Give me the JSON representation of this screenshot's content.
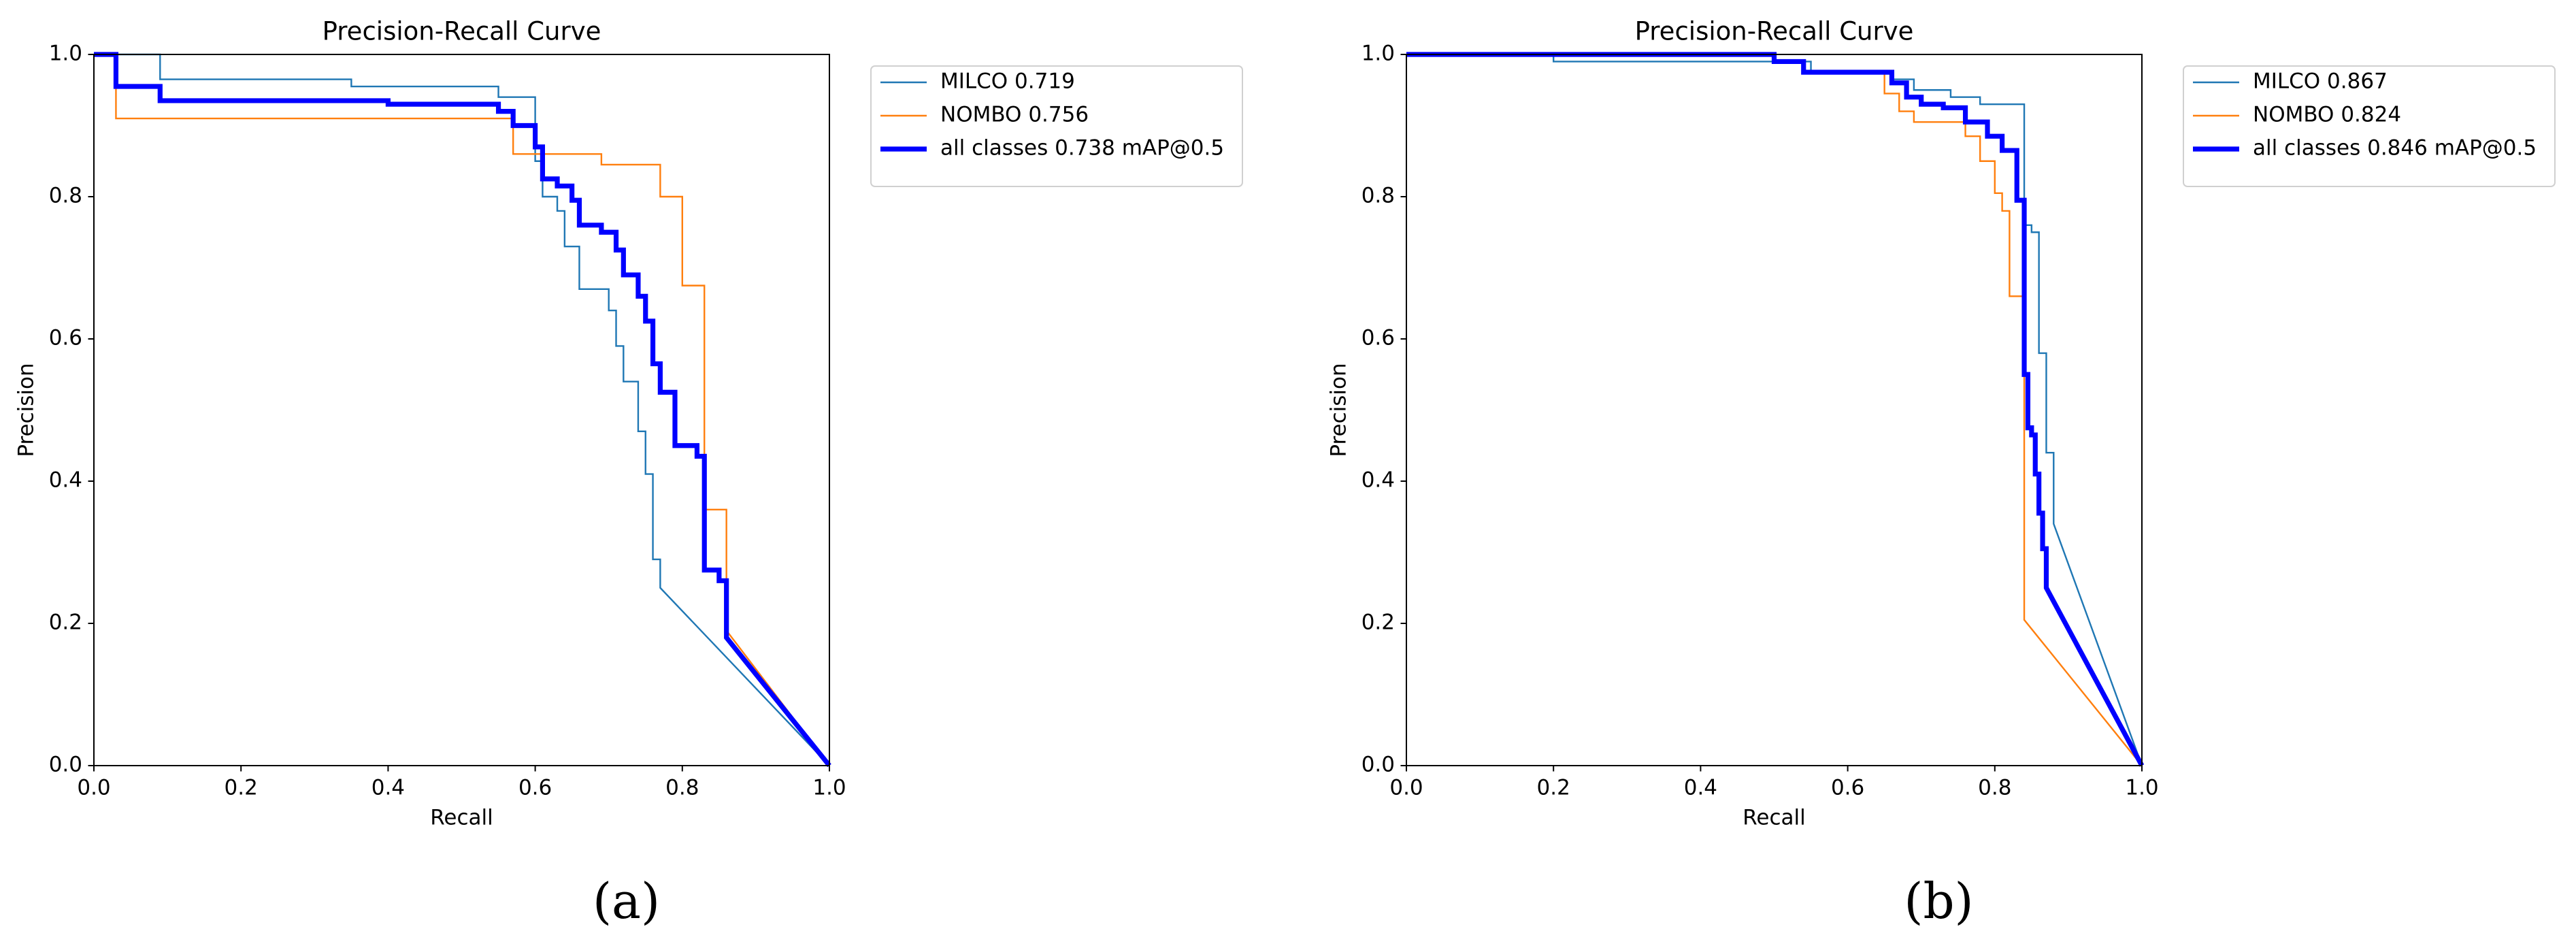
{
  "chart_data": [
    {
      "type": "line",
      "title": "Precision-Recall Curve",
      "x_label": "Recall",
      "y_label": "Precision",
      "panel_label": "(a)",
      "xlim": [
        0,
        1
      ],
      "ylim": [
        0,
        1
      ],
      "xticks": [
        {
          "value": 0,
          "label": "0.0"
        },
        0.2,
        0.4,
        0.6,
        0.8,
        {
          "value": 1,
          "label": "1.0"
        }
      ],
      "yticks": [
        {
          "value": 0,
          "label": "0.0"
        },
        0.2,
        0.4,
        0.6,
        0.8,
        {
          "value": 1,
          "label": "1.0"
        }
      ],
      "series": [
        {
          "name": "MILCO 0.719",
          "color": "#1f77b4",
          "width": 1,
          "x": [
            0,
            0.09,
            0.09,
            0.35,
            0.35,
            0.55,
            0.55,
            0.6,
            0.6,
            0.61,
            0.61,
            0.63,
            0.63,
            0.64,
            0.64,
            0.66,
            0.66,
            0.7,
            0.7,
            0.71,
            0.71,
            0.72,
            0.72,
            0.74,
            0.74,
            0.75,
            0.75,
            0.76,
            0.76,
            0.77,
            0.77,
            1
          ],
          "values": [
            1,
            1,
            0.965,
            0.965,
            0.955,
            0.955,
            0.94,
            0.94,
            0.85,
            0.85,
            0.8,
            0.8,
            0.78,
            0.78,
            0.73,
            0.73,
            0.67,
            0.67,
            0.64,
            0.64,
            0.59,
            0.59,
            0.54,
            0.54,
            0.47,
            0.47,
            0.41,
            0.41,
            0.29,
            0.29,
            0.25,
            0
          ]
        },
        {
          "name": "NOMBO 0.756",
          "color": "#ff7f0e",
          "width": 1,
          "x": [
            0,
            0.03,
            0.03,
            0.57,
            0.57,
            0.69,
            0.69,
            0.77,
            0.77,
            0.8,
            0.8,
            0.83,
            0.83,
            0.86,
            0.86,
            1
          ],
          "values": [
            1,
            1,
            0.91,
            0.91,
            0.86,
            0.86,
            0.845,
            0.845,
            0.8,
            0.8,
            0.675,
            0.675,
            0.36,
            0.36,
            0.19,
            0
          ]
        },
        {
          "name": "all classes 0.738 mAP@0.5",
          "color": "#0000ff",
          "width": 3,
          "x": [
            0,
            0.03,
            0.03,
            0.09,
            0.09,
            0.4,
            0.4,
            0.55,
            0.55,
            0.57,
            0.57,
            0.6,
            0.6,
            0.61,
            0.61,
            0.63,
            0.63,
            0.65,
            0.65,
            0.66,
            0.66,
            0.69,
            0.69,
            0.71,
            0.71,
            0.72,
            0.72,
            0.74,
            0.74,
            0.75,
            0.75,
            0.76,
            0.76,
            0.77,
            0.77,
            0.79,
            0.79,
            0.82,
            0.82,
            0.83,
            0.83,
            0.85,
            0.85,
            0.86,
            0.86,
            1
          ],
          "values": [
            1,
            1,
            0.955,
            0.955,
            0.935,
            0.935,
            0.93,
            0.93,
            0.92,
            0.92,
            0.9,
            0.9,
            0.87,
            0.87,
            0.825,
            0.825,
            0.815,
            0.815,
            0.795,
            0.795,
            0.76,
            0.76,
            0.75,
            0.75,
            0.725,
            0.725,
            0.69,
            0.69,
            0.66,
            0.66,
            0.625,
            0.625,
            0.565,
            0.565,
            0.525,
            0.525,
            0.45,
            0.45,
            0.435,
            0.435,
            0.275,
            0.275,
            0.26,
            0.26,
            0.18,
            0
          ]
        }
      ]
    },
    {
      "type": "line",
      "title": "Precision-Recall Curve",
      "x_label": "Recall",
      "y_label": "Precision",
      "panel_label": "(b)",
      "xlim": [
        0,
        1
      ],
      "ylim": [
        0,
        1
      ],
      "xticks": [
        {
          "value": 0,
          "label": "0.0"
        },
        0.2,
        0.4,
        0.6,
        0.8,
        {
          "value": 1,
          "label": "1.0"
        }
      ],
      "yticks": [
        {
          "value": 0,
          "label": "0.0"
        },
        0.2,
        0.4,
        0.6,
        0.8,
        {
          "value": 1,
          "label": "1.0"
        }
      ],
      "series": [
        {
          "name": "MILCO 0.867",
          "color": "#1f77b4",
          "width": 1,
          "x": [
            0,
            0.2,
            0.2,
            0.55,
            0.55,
            0.66,
            0.66,
            0.69,
            0.69,
            0.74,
            0.74,
            0.78,
            0.78,
            0.84,
            0.84,
            0.85,
            0.85,
            0.86,
            0.86,
            0.87,
            0.87,
            0.88,
            0.88,
            1
          ],
          "values": [
            1,
            1,
            0.99,
            0.99,
            0.975,
            0.975,
            0.965,
            0.965,
            0.95,
            0.95,
            0.94,
            0.94,
            0.93,
            0.93,
            0.76,
            0.76,
            0.75,
            0.75,
            0.58,
            0.58,
            0.44,
            0.44,
            0.34,
            0
          ]
        },
        {
          "name": "NOMBO 0.824",
          "color": "#ff7f0e",
          "width": 1,
          "x": [
            0,
            0.5,
            0.5,
            0.54,
            0.54,
            0.65,
            0.65,
            0.67,
            0.67,
            0.69,
            0.69,
            0.76,
            0.76,
            0.78,
            0.78,
            0.8,
            0.8,
            0.81,
            0.81,
            0.82,
            0.82,
            0.84,
            0.84,
            1
          ],
          "values": [
            1,
            1,
            0.99,
            0.99,
            0.975,
            0.975,
            0.945,
            0.945,
            0.92,
            0.92,
            0.905,
            0.905,
            0.885,
            0.885,
            0.85,
            0.85,
            0.805,
            0.805,
            0.78,
            0.78,
            0.66,
            0.66,
            0.205,
            0
          ]
        },
        {
          "name": "all classes 0.846 mAP@0.5",
          "color": "#0000ff",
          "width": 3,
          "x": [
            0,
            0.5,
            0.5,
            0.54,
            0.54,
            0.66,
            0.66,
            0.68,
            0.68,
            0.7,
            0.7,
            0.73,
            0.73,
            0.76,
            0.76,
            0.79,
            0.79,
            0.81,
            0.81,
            0.83,
            0.83,
            0.84,
            0.84,
            0.845,
            0.845,
            0.85,
            0.85,
            0.855,
            0.855,
            0.86,
            0.86,
            0.865,
            0.865,
            0.87,
            0.87,
            1
          ],
          "values": [
            1,
            1,
            0.99,
            0.99,
            0.975,
            0.975,
            0.96,
            0.96,
            0.94,
            0.94,
            0.93,
            0.93,
            0.925,
            0.925,
            0.905,
            0.905,
            0.885,
            0.885,
            0.865,
            0.865,
            0.795,
            0.795,
            0.55,
            0.55,
            0.475,
            0.475,
            0.465,
            0.465,
            0.41,
            0.41,
            0.355,
            0.355,
            0.305,
            0.305,
            0.25,
            0
          ]
        }
      ]
    }
  ]
}
